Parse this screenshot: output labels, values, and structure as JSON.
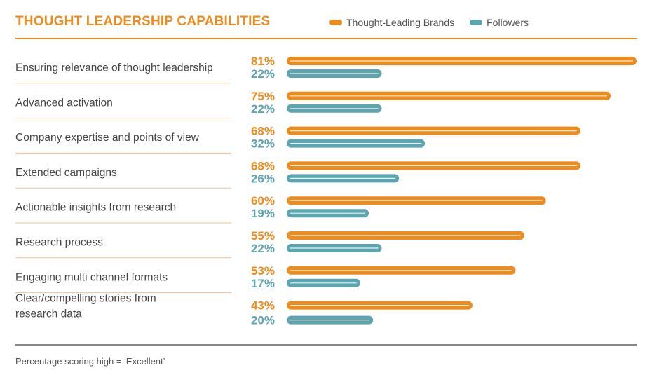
{
  "colors": {
    "primary": "#ec8b1e",
    "secondary": "#5ea5b0",
    "divider": "#f3c08f"
  },
  "chart_data": {
    "type": "bar",
    "orientation": "horizontal",
    "title": "THOUGHT LEADERSHIP CAPABILITIES",
    "categories": [
      [
        "Ensuring relevance of thought leadership"
      ],
      [
        "Advanced activation"
      ],
      [
        "Company expertise and points of view"
      ],
      [
        "Extended campaigns"
      ],
      [
        "Actionable insights from research"
      ],
      [
        "Research process"
      ],
      [
        "Engaging multi channel formats"
      ],
      [
        "Clear/compelling stories from",
        "research data"
      ]
    ],
    "series": [
      {
        "name": "Thought-Leading Brands",
        "values": [
          81,
          75,
          68,
          68,
          60,
          55,
          53,
          43
        ]
      },
      {
        "name": "Followers",
        "values": [
          22,
          22,
          32,
          26,
          19,
          22,
          17,
          20
        ]
      }
    ],
    "value_suffix": "%",
    "xlim": [
      0,
      81
    ],
    "legend": "top-right",
    "footnote": "Percentage scoring high = ‘Excellent’"
  }
}
